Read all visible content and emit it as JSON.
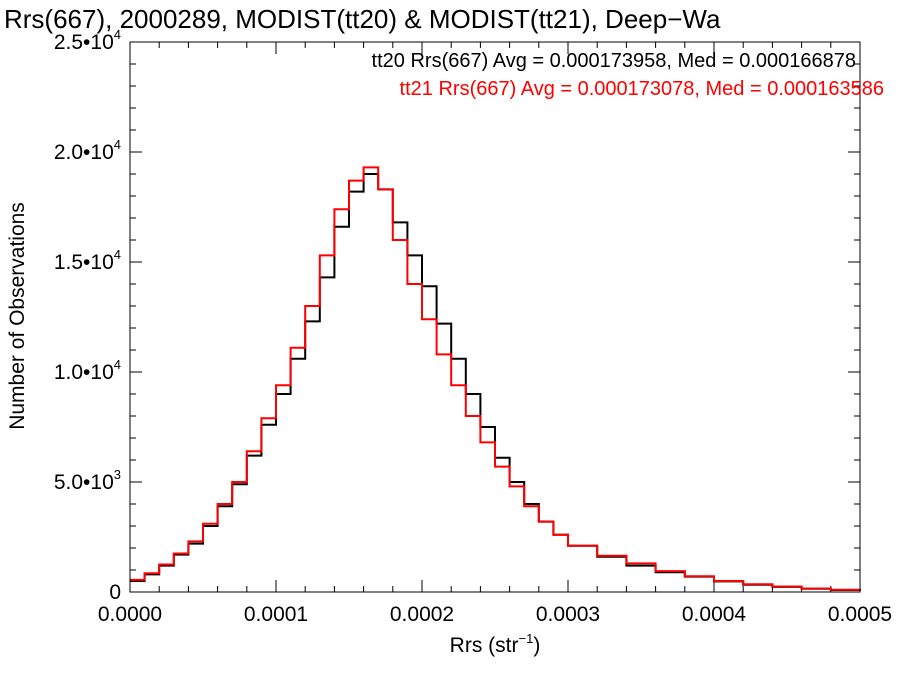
{
  "chart_data": {
    "type": "line",
    "title": "Rrs(667), 2000289, MODIST(tt20) & MODIST(tt21), Deep−Wa",
    "xlabel": "Rrs (str",
    "xlabel_sup": "−1",
    "xlabel_close": ")",
    "ylabel": "Number of Observations",
    "xlim": [
      0,
      0.0005
    ],
    "ylim": [
      0,
      25000
    ],
    "x_ticks": [
      {
        "value": 0.0,
        "label": "0.0000"
      },
      {
        "value": 0.0001,
        "label": "0.0001"
      },
      {
        "value": 0.0002,
        "label": "0.0002"
      },
      {
        "value": 0.0003,
        "label": "0.0003"
      },
      {
        "value": 0.0004,
        "label": "0.0004"
      },
      {
        "value": 0.0005,
        "label": "0.0005"
      }
    ],
    "y_ticks": [
      {
        "value": 0,
        "mantissa": "0",
        "exp": ""
      },
      {
        "value": 5000,
        "mantissa": "5.0•10",
        "exp": "3"
      },
      {
        "value": 10000,
        "mantissa": "1.0•10",
        "exp": "4"
      },
      {
        "value": 15000,
        "mantissa": "1.5•10",
        "exp": "4"
      },
      {
        "value": 20000,
        "mantissa": "2.0•10",
        "exp": "4"
      },
      {
        "value": 25000,
        "mantissa": "2.5•10",
        "exp": "4"
      }
    ],
    "series": [
      {
        "name": "tt20",
        "label": "tt20 Rrs(667) Avg = 0.000173958, Med = 0.000166878",
        "color": "#000000",
        "x": [
          0.0,
          1e-05,
          2e-05,
          3e-05,
          4e-05,
          5e-05,
          6e-05,
          7e-05,
          8e-05,
          9e-05,
          0.0001,
          0.00011,
          0.00012,
          0.00013,
          0.00014,
          0.00015,
          0.00016,
          0.00017,
          0.00018,
          0.00019,
          0.0002,
          0.00021,
          0.00022,
          0.00023,
          0.00024,
          0.00025,
          0.00026,
          0.00027,
          0.00028,
          0.00029,
          0.0003,
          0.00032,
          0.00034,
          0.00036,
          0.00038,
          0.0004,
          0.00042,
          0.00044,
          0.00046,
          0.00048,
          0.0005
        ],
        "y": [
          500,
          800,
          1200,
          1700,
          2200,
          3000,
          3900,
          4900,
          6200,
          7600,
          9000,
          10600,
          12300,
          14300,
          16600,
          18200,
          19000,
          18300,
          16800,
          15300,
          13900,
          12200,
          10600,
          9000,
          7500,
          6100,
          5000,
          4000,
          3200,
          2600,
          2100,
          1600,
          1200,
          900,
          700,
          480,
          330,
          230,
          150,
          90,
          50
        ]
      },
      {
        "name": "tt21",
        "label": "tt21 Rrs(667) Avg = 0.000173078, Med = 0.000163586",
        "color": "#ff0000",
        "x": [
          0.0,
          1e-05,
          2e-05,
          3e-05,
          4e-05,
          5e-05,
          6e-05,
          7e-05,
          8e-05,
          9e-05,
          0.0001,
          0.00011,
          0.00012,
          0.00013,
          0.00014,
          0.00015,
          0.00016,
          0.00017,
          0.00018,
          0.00019,
          0.0002,
          0.00021,
          0.00022,
          0.00023,
          0.00024,
          0.00025,
          0.00026,
          0.00027,
          0.00028,
          0.00029,
          0.0003,
          0.00032,
          0.00034,
          0.00036,
          0.00038,
          0.0004,
          0.00042,
          0.00044,
          0.00046,
          0.00048,
          0.0005
        ],
        "y": [
          550,
          850,
          1250,
          1750,
          2300,
          3100,
          4000,
          5000,
          6400,
          7900,
          9400,
          11100,
          13000,
          15300,
          17400,
          18700,
          19300,
          18300,
          16000,
          14000,
          12400,
          10800,
          9400,
          8000,
          6800,
          5700,
          4800,
          3900,
          3200,
          2600,
          2100,
          1650,
          1300,
          950,
          720,
          500,
          350,
          250,
          160,
          100,
          60
        ]
      }
    ],
    "legend_position": "top-right"
  }
}
